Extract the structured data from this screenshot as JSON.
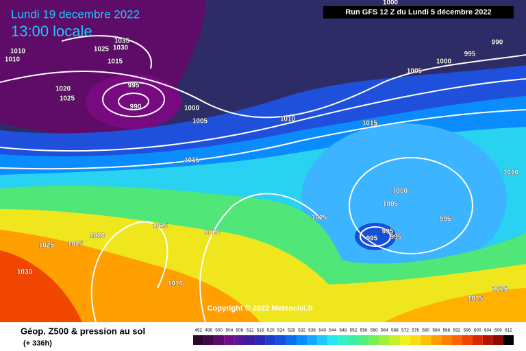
{
  "header": {
    "date": "Lundi 19 decembre 2022",
    "time": "13:00 locale",
    "run": "Run GFS 12 Z du Lundi 5 décembre 2022"
  },
  "map": {
    "isobar_labels": [
      1000,
      1035,
      1030,
      1025,
      1015,
      1010,
      1010,
      1020,
      1025,
      995,
      990,
      1000,
      1005,
      1010,
      1015,
      1015,
      1005,
      1000,
      995,
      990,
      1000,
      1005,
      1025,
      1015,
      1020,
      1020,
      1025,
      1025,
      1030,
      1010,
      995,
      995,
      995,
      995,
      1010,
      1015,
      1015
    ],
    "copyright": "Copyright © 2022 Meteociel.fr"
  },
  "legend": {
    "title": "Géop. Z500 & pression au sol",
    "subtitle": "(+ 336h)",
    "scale": [
      492,
      496,
      500,
      504,
      508,
      512,
      516,
      520,
      524,
      528,
      532,
      536,
      540,
      544,
      548,
      552,
      556,
      560,
      564,
      568,
      572,
      576,
      580,
      584,
      588,
      592,
      596,
      600,
      604,
      608,
      612
    ],
    "colors": [
      "#2a0a2a",
      "#3c0a46",
      "#5a0a6a",
      "#6e0e82",
      "#5a1496",
      "#3c1ea0",
      "#2828b4",
      "#1e3cc8",
      "#1450dc",
      "#0a6ef0",
      "#0a8cff",
      "#14aaff",
      "#1ec8ff",
      "#28e6f0",
      "#32f0c8",
      "#3cf0a0",
      "#50f078",
      "#78f050",
      "#a0f03c",
      "#c8f028",
      "#f0f01e",
      "#fadc14",
      "#ffbe0a",
      "#ffa000",
      "#ff8200",
      "#ff6400",
      "#f04600",
      "#dc2800",
      "#b41400",
      "#8c0a00",
      "#000000"
    ]
  }
}
